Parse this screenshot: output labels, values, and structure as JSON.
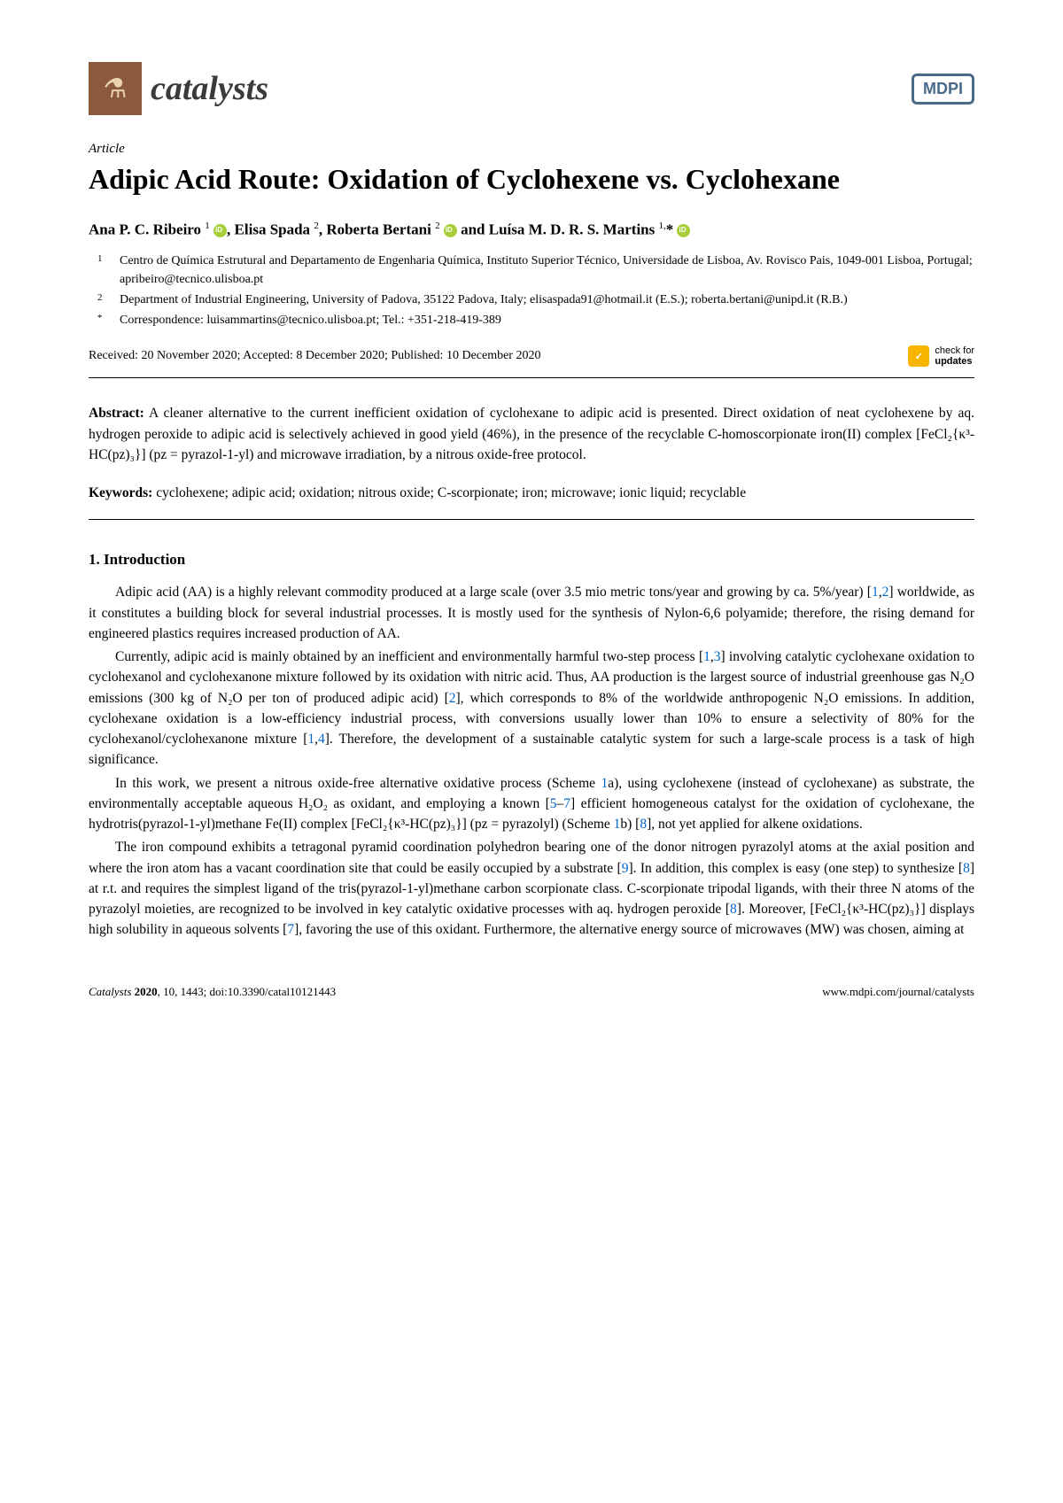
{
  "journal": {
    "name": "catalysts",
    "icon_name": "flask-icon"
  },
  "publisher_badge": "MDPI",
  "article_type": "Article",
  "title": "Adipic Acid Route: Oxidation of Cyclohexene vs. Cyclohexane",
  "authors": {
    "a1_name": "Ana P. C. Ribeiro",
    "a1_sup": "1",
    "a2_name": "Elisa Spada",
    "a2_sup": "2",
    "a3_name": "Roberta Bertani",
    "a3_sup": "2",
    "a4_name": "Luísa M. D. R. S. Martins",
    "a4_sup": "1,",
    "and": " and "
  },
  "affiliations": {
    "n1": "1",
    "t1": "Centro de Química Estrutural and Departamento de Engenharia Química, Instituto Superior Técnico, Universidade de Lisboa, Av. Rovisco Pais, 1049-001 Lisboa, Portugal; apribeiro@tecnico.ulisboa.pt",
    "n2": "2",
    "t2": "Department of Industrial Engineering, University of Padova, 35122 Padova, Italy; elisaspada91@hotmail.it (E.S.); roberta.bertani@unipd.it (R.B.)",
    "n3": "*",
    "t3": "Correspondence: luisammartins@tecnico.ulisboa.pt; Tel.: +351-218-419-389"
  },
  "dates": "Received: 20 November 2020; Accepted: 8 December 2020; Published: 10 December 2020",
  "check_updates": {
    "line1": "check for",
    "line2": "updates"
  },
  "abstract_label": "Abstract:",
  "abstract_text": " A cleaner alternative to the current inefficient oxidation of cyclohexane to adipic acid is presented. Direct oxidation of neat cyclohexene by aq. hydrogen peroxide to adipic acid is selectively achieved in good yield (46%), in the presence of the recyclable C-homoscorpionate iron(II) complex [FeCl₂{κ³-HC(pz)₃}] (pz = pyrazol-1-yl) and microwave irradiation, by a nitrous oxide-free protocol.",
  "keywords_label": "Keywords:",
  "keywords_text": " cyclohexene; adipic acid; oxidation; nitrous oxide; C-scorpionate; iron; microwave; ionic liquid; recyclable",
  "section1_heading": "1. Introduction",
  "body": {
    "p1a": "Adipic acid (AA) is a highly relevant commodity produced at a large scale (over 3.5 mio metric tons/year and growing by ca. 5%/year) [",
    "p1_r1": "1",
    "p1_c1": ",",
    "p1_r2": "2",
    "p1b": "] worldwide, as it constitutes a building block for several industrial processes. It is mostly used for the synthesis of Nylon-6,6 polyamide; therefore, the rising demand for engineered plastics requires increased production of AA.",
    "p2a": "Currently, adipic acid is mainly obtained by an inefficient and environmentally harmful two-step process [",
    "p2_r1": "1",
    "p2_c1": ",",
    "p2_r2": "3",
    "p2b": "] involving catalytic cyclohexane oxidation to cyclohexanol and cyclohexanone mixture followed by its oxidation with nitric acid. Thus, AA production is the largest source of industrial greenhouse gas N₂O emissions (300 kg of N₂O per ton of produced adipic acid) [",
    "p2_r3": "2",
    "p2c": "], which corresponds to 8% of the worldwide anthropogenic N₂O emissions. In addition, cyclohexane oxidation is a low-efficiency industrial process, with conversions usually lower than 10% to ensure a selectivity of 80% for the cyclohexanol/cyclohexanone mixture [",
    "p2_r4": "1",
    "p2_c2": ",",
    "p2_r5": "4",
    "p2d": "]. Therefore, the development of a sustainable catalytic system for such a large-scale process is a task of high significance.",
    "p3a": "In this work, we present a nitrous oxide-free alternative oxidative process (Scheme ",
    "p3_s1": "1",
    "p3b": "a), using cyclohexene (instead of cyclohexane) as substrate, the environmentally acceptable aqueous H₂O₂ as oxidant, and employing a known [",
    "p3_r1": "5",
    "p3_dash": "–",
    "p3_r2": "7",
    "p3c": "] efficient homogeneous catalyst for the oxidation of cyclohexane, the hydrotris(pyrazol-1-yl)methane Fe(II) complex [FeCl₂{κ³-HC(pz)₃}] (pz = pyrazolyl) (Scheme ",
    "p3_s2": "1",
    "p3d": "b) [",
    "p3_r3": "8",
    "p3e": "], not yet applied for alkene oxidations.",
    "p4a": "The iron compound exhibits a tetragonal pyramid coordination polyhedron bearing one of the donor nitrogen pyrazolyl atoms at the axial position and where the iron atom has a vacant coordination site that could be easily occupied by a substrate [",
    "p4_r1": "9",
    "p4b": "]. In addition, this complex is easy (one step) to synthesize [",
    "p4_r2": "8",
    "p4c": "] at r.t. and requires the simplest ligand of the tris(pyrazol-1-yl)methane carbon scorpionate class. C-scorpionate tripodal ligands, with their three N atoms of the pyrazolyl moieties, are recognized to be involved in key catalytic oxidative processes with aq. hydrogen peroxide [",
    "p4_r3": "8",
    "p4d": "]. Moreover, [FeCl₂{κ³-HC(pz)₃}] displays high solubility in aqueous solvents [",
    "p4_r4": "7",
    "p4e": "], favoring the use of this oxidant. Furthermore, the alternative energy source of microwaves (MW) was chosen, aiming at"
  },
  "footer": {
    "left_italic": "Catalysts ",
    "left_bold": "2020",
    "left_rest": ", 10, 1443; doi:10.3390/catal10121443",
    "right": "www.mdpi.com/journal/catalysts"
  }
}
